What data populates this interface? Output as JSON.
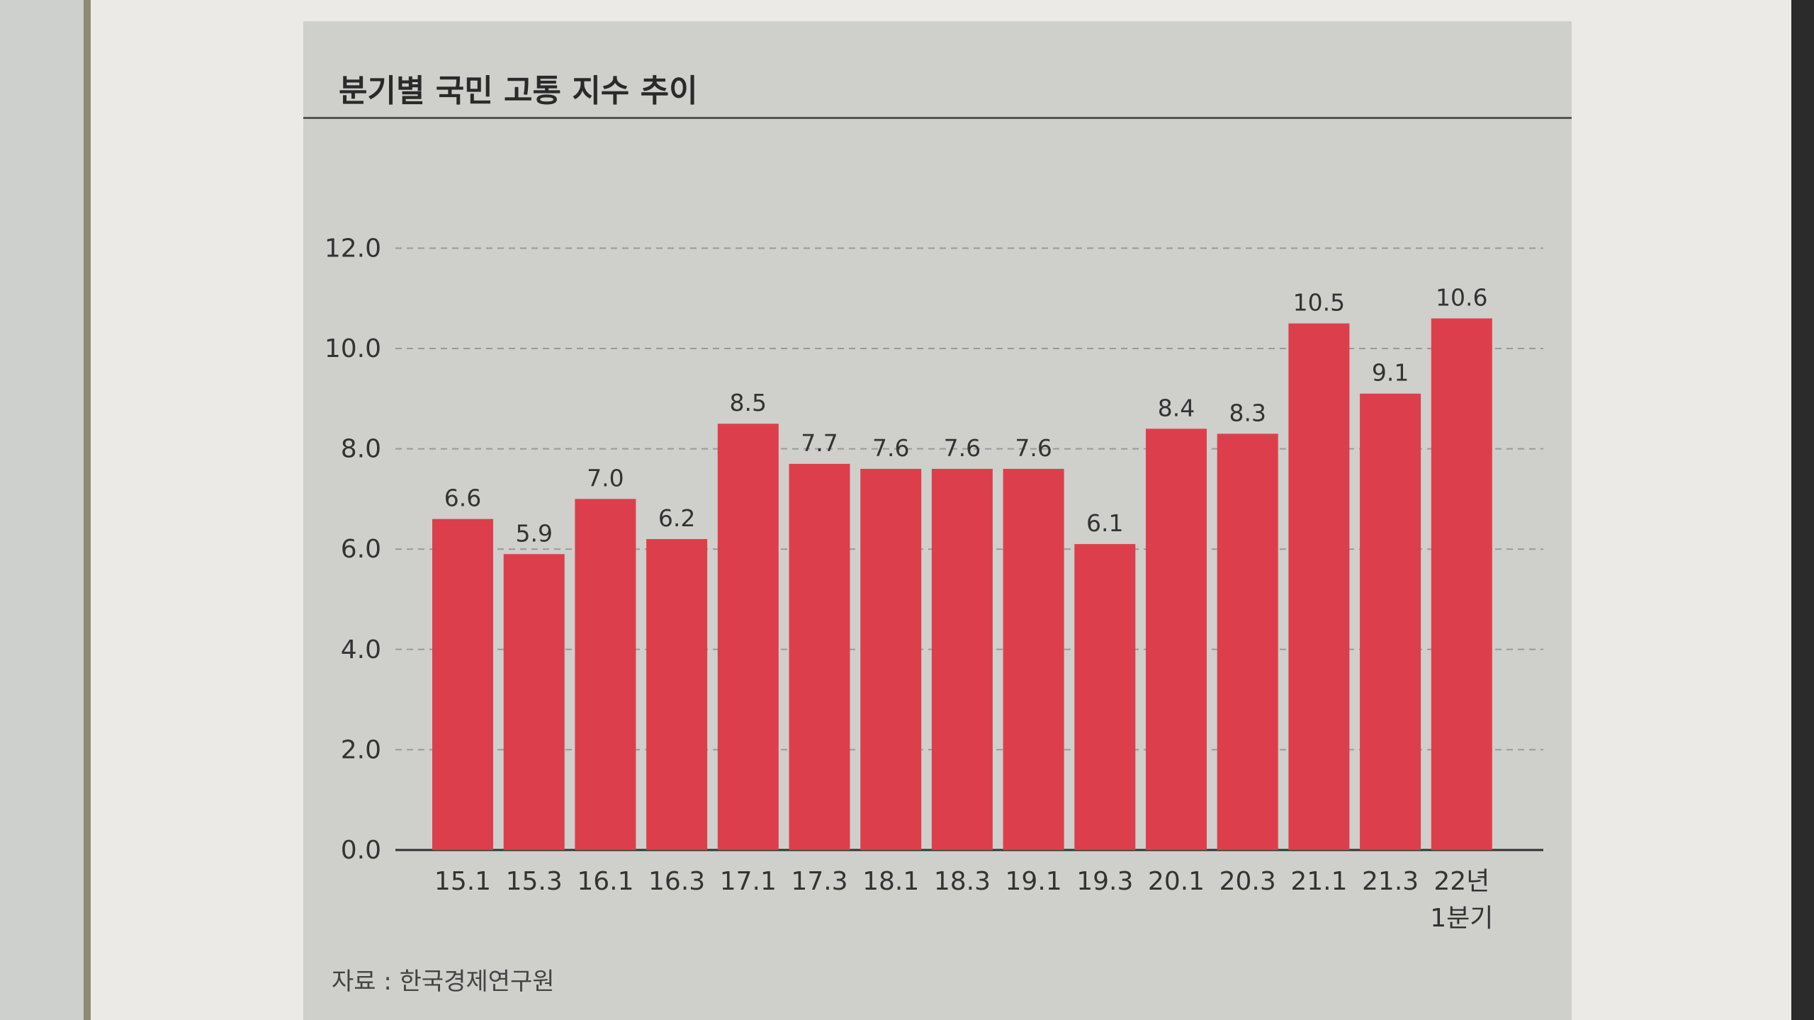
{
  "chart_data": {
    "type": "bar",
    "title": "분기별 국민 고통 지수 추이",
    "source": "자료 : 한국경제연구원",
    "categories": [
      "15.1",
      "15.3",
      "16.1",
      "16.3",
      "17.1",
      "17.3",
      "18.1",
      "18.3",
      "19.1",
      "19.3",
      "20.1",
      "20.3",
      "21.1",
      "21.3",
      "22년\n1분기"
    ],
    "values": [
      6.6,
      5.9,
      7.0,
      6.2,
      8.5,
      7.7,
      7.6,
      7.6,
      7.6,
      6.1,
      8.4,
      8.3,
      10.5,
      9.1,
      10.6
    ],
    "value_labels": [
      "6.6",
      "5.9",
      "7.0",
      "6.2",
      "8.5",
      "7.7",
      "7.6",
      "7.6",
      "7.6",
      "6.1",
      "8.4",
      "8.3",
      "10.5",
      "9.1",
      "10.6"
    ],
    "y_ticks": [
      "0.0",
      "2.0",
      "4.0",
      "6.0",
      "8.0",
      "10.0",
      "12.0"
    ],
    "ylim": [
      0,
      12
    ],
    "grid": true,
    "bar_color": "#dc3f4b",
    "grid_color": "#9a9a9a"
  }
}
